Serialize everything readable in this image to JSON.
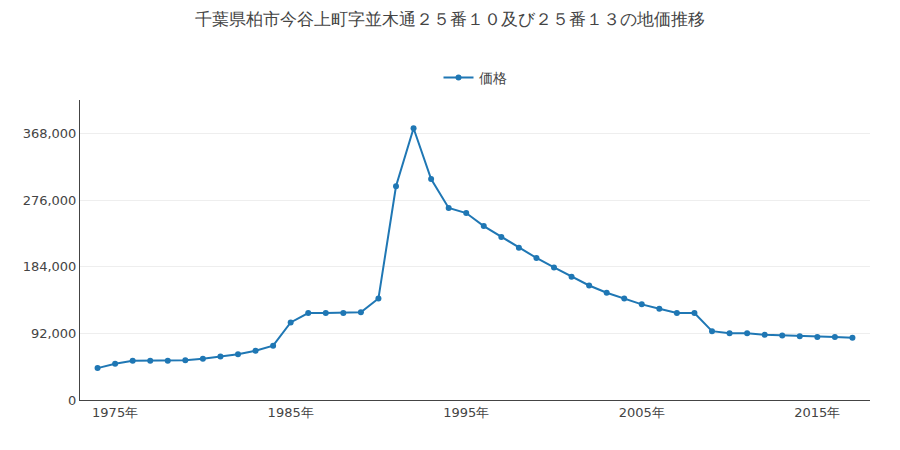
{
  "chart_data": {
    "type": "line",
    "title": "千葉県柏市今谷上町字並木通２５番１０及び２５番１３の地価推移",
    "x": [
      1974,
      1975,
      1976,
      1977,
      1978,
      1979,
      1980,
      1981,
      1982,
      1983,
      1984,
      1985,
      1986,
      1987,
      1988,
      1989,
      1990,
      1991,
      1992,
      1993,
      1994,
      1995,
      1996,
      1997,
      1998,
      1999,
      2000,
      2001,
      2002,
      2003,
      2004,
      2005,
      2006,
      2007,
      2008,
      2009,
      2010,
      2011,
      2012,
      2013,
      2014,
      2015,
      2016,
      2017
    ],
    "series": [
      {
        "name": "価格",
        "values": [
          44000,
          50000,
          54000,
          54000,
          54000,
          55000,
          57000,
          60000,
          63000,
          68000,
          75000,
          107000,
          120000,
          120000,
          120000,
          121000,
          140000,
          295000,
          375000,
          305000,
          265000,
          258000,
          240000,
          225000,
          210000,
          196000,
          183000,
          170000,
          158000,
          148000,
          140000,
          132000,
          126000,
          120000,
          120000,
          95000,
          92000,
          92000,
          90000,
          89000,
          88000,
          87000,
          87000,
          86000
        ]
      }
    ],
    "xlim": [
      1973,
      2018
    ],
    "xticks": [
      {
        "value": 1975,
        "label": "1975年"
      },
      {
        "value": 1985,
        "label": "1985年"
      },
      {
        "value": 1995,
        "label": "1995年"
      },
      {
        "value": 2005,
        "label": "2005年"
      },
      {
        "value": 2015,
        "label": "2015年"
      }
    ],
    "ylim": [
      0,
      414000
    ],
    "yticks": [
      0,
      {
        "value": 92000,
        "label": "92,000"
      },
      {
        "value": 184000,
        "label": "184,000"
      },
      {
        "value": 276000,
        "label": "276,000"
      },
      {
        "value": 368000,
        "label": "368,000"
      }
    ],
    "grid": "y",
    "legend": "top",
    "marker": "circle",
    "line_style": "solid"
  }
}
